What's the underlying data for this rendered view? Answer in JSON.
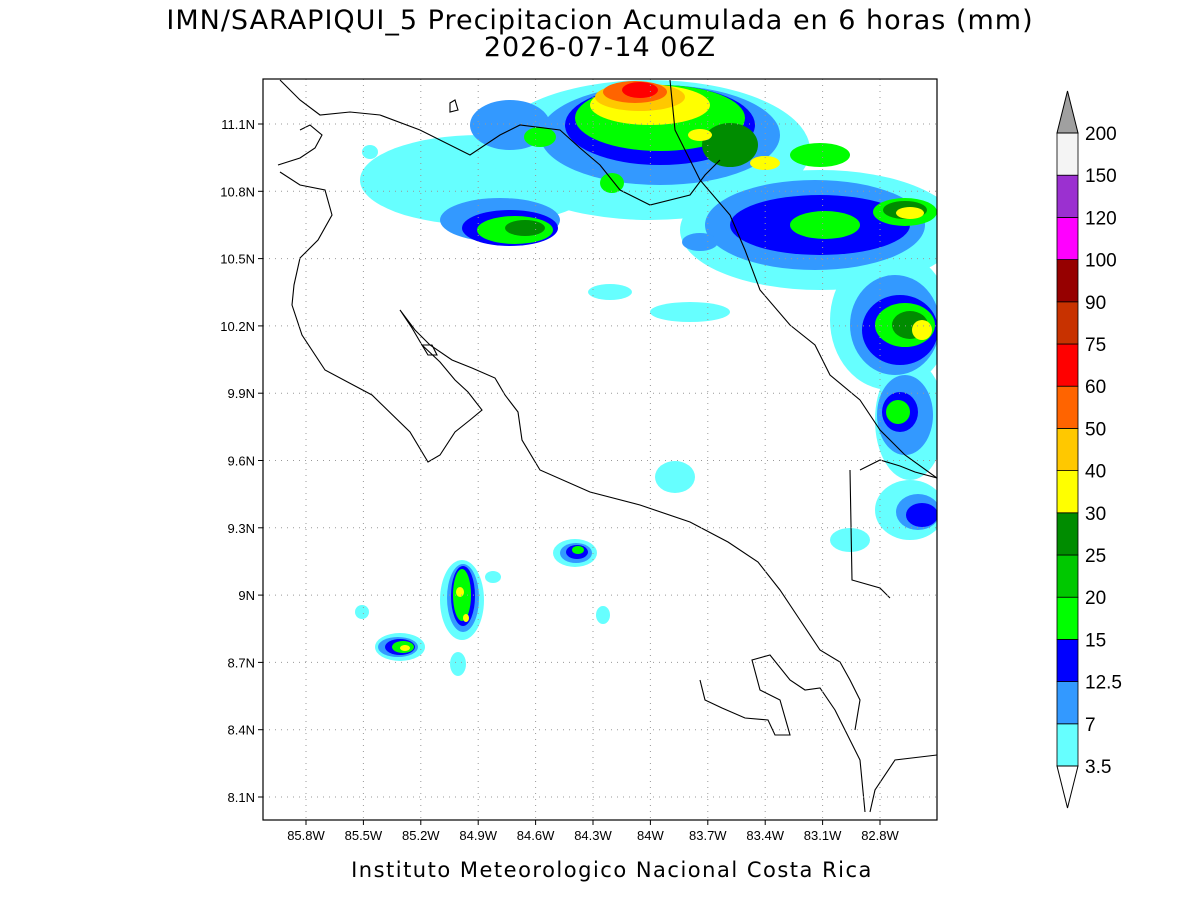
{
  "map": {
    "title": "IMN/SARAPIQUI_5 Precipitacion Acumulada en 6 horas (mm)",
    "subtitle": "2026-07-14 06Z",
    "lat_labels": [
      "11.1N",
      "10.8N",
      "10.5N",
      "10.2N",
      "9.9N",
      "9.6N",
      "9.3N",
      "9N",
      "8.7N",
      "8.4N",
      "8.1N"
    ],
    "lon_labels": [
      "85.8W",
      "85.5W",
      "85.2W",
      "84.9W",
      "84.6W",
      "84.3W",
      "84W",
      "83.7W",
      "83.4W",
      "83.1W",
      "82.8W"
    ],
    "legend": {
      "levels": [
        3.5,
        7,
        12.5,
        15,
        20,
        25,
        30,
        40,
        50,
        60,
        75,
        90,
        100,
        120,
        150,
        200
      ],
      "colors": [
        "#66ffff",
        "#3399ff",
        "#0000ff",
        "#00ff00",
        "#00c800",
        "#008c00",
        "#ffff00",
        "#ffc800",
        "#ff6400",
        "#ff0000",
        "#c83200",
        "#960000",
        "#ff00ff",
        "#9b30d0",
        "#f4f4f4"
      ],
      "under_color": "#ffffff",
      "over_color": "#a0a0a0"
    },
    "footer": "Instituto Meteorologico Nacional Costa Rica"
  }
}
